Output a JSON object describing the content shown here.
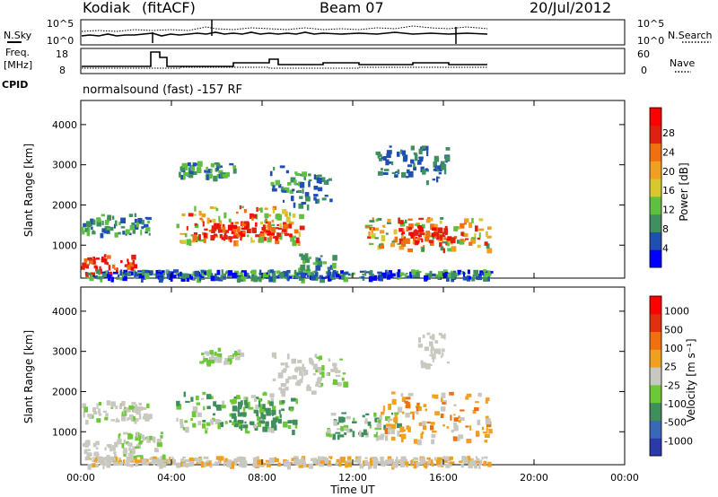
{
  "header": {
    "station": "Kodiak",
    "mode": "(fitACF)",
    "beam": "Beam 07",
    "date": "20/Jul/2012"
  },
  "strip_panels": {
    "nsky_label": "N.Sky",
    "nsky_ticks": [
      "10^5",
      "10^0"
    ],
    "nsearch_label": "N.Search",
    "nsearch_ticks": [
      "10^5",
      "10^0"
    ],
    "freq_label_1": "Freq.",
    "freq_label_2": "[MHz]",
    "freq_ticks": [
      "18",
      "8"
    ],
    "nave_label": "Nave",
    "nave_ticks": [
      "60",
      "0"
    ],
    "cpid_label": "CPID",
    "cpid_text": "normalsound (fast) -157 RF"
  },
  "chart_data": [
    {
      "type": "heatmap",
      "title": "",
      "ylabel": "Slant Range [km]",
      "xlabel": "",
      "x_ticks": [
        "00:00",
        "04:00",
        "08:00",
        "12:00",
        "16:00",
        "20:00",
        "00:00"
      ],
      "y_ticks": [
        "1000",
        "2000",
        "3000",
        "4000"
      ],
      "ylim": [
        180,
        4600
      ],
      "xlim_hours": [
        0,
        24
      ],
      "colorbar": {
        "label": "Power [dB]",
        "ticks": [
          "4",
          "8",
          "12",
          "16",
          "20",
          "24",
          "28"
        ],
        "colors": [
          "#0000ff",
          "#1f4fb0",
          "#3f8f5f",
          "#5fbf40",
          "#d8c830",
          "#f0a020",
          "#f07010",
          "#e02010",
          "#ff0000"
        ]
      },
      "data_coverage_hours": [
        0,
        18
      ]
    },
    {
      "type": "heatmap",
      "title": "",
      "ylabel": "Slant Range [km]",
      "xlabel": "Time UT",
      "x_ticks": [
        "00:00",
        "04:00",
        "08:00",
        "12:00",
        "16:00",
        "20:00",
        "00:00"
      ],
      "y_ticks": [
        "1000",
        "2000",
        "3000",
        "4000"
      ],
      "ylim": [
        180,
        4600
      ],
      "xlim_hours": [
        0,
        24
      ],
      "colorbar": {
        "label": "Velocity [m s⁻¹]",
        "ticks": [
          "1000",
          "500",
          "100",
          "25",
          "-25",
          "-100",
          "-500",
          "-1000"
        ],
        "colors": [
          "#2a3aa8",
          "#3a68b8",
          "#3e8e5e",
          "#6cc836",
          "#c8c8c0",
          "#f0a020",
          "#f07010",
          "#e03010",
          "#ff0000"
        ]
      },
      "data_coverage_hours": [
        0,
        18
      ]
    }
  ]
}
